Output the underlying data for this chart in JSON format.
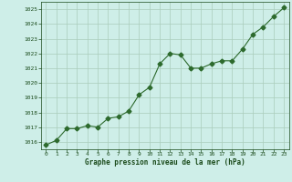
{
  "x": [
    0,
    1,
    2,
    3,
    4,
    5,
    6,
    7,
    8,
    9,
    10,
    11,
    12,
    13,
    14,
    15,
    16,
    17,
    18,
    19,
    20,
    21,
    22,
    23
  ],
  "y": [
    1015.8,
    1016.1,
    1016.9,
    1016.9,
    1017.1,
    1017.0,
    1017.6,
    1017.7,
    1018.1,
    1019.2,
    1019.7,
    1021.3,
    1022.0,
    1021.9,
    1021.0,
    1021.0,
    1021.3,
    1021.5,
    1021.5,
    1022.3,
    1023.3,
    1023.8,
    1024.5,
    1025.1
  ],
  "line_color": "#2d6a2d",
  "marker": "D",
  "marker_size": 2.5,
  "bg_color": "#ceeee8",
  "grid_color": "#aaccbb",
  "xlabel": "Graphe pression niveau de la mer (hPa)",
  "xlabel_color": "#1a4a1a",
  "tick_color": "#1a4a1a",
  "ylim": [
    1015.5,
    1025.5
  ],
  "xlim": [
    -0.5,
    23.5
  ],
  "yticks": [
    1016,
    1017,
    1018,
    1019,
    1020,
    1021,
    1022,
    1023,
    1024,
    1025
  ],
  "xticks": [
    0,
    1,
    2,
    3,
    4,
    5,
    6,
    7,
    8,
    9,
    10,
    11,
    12,
    13,
    14,
    15,
    16,
    17,
    18,
    19,
    20,
    21,
    22,
    23
  ]
}
